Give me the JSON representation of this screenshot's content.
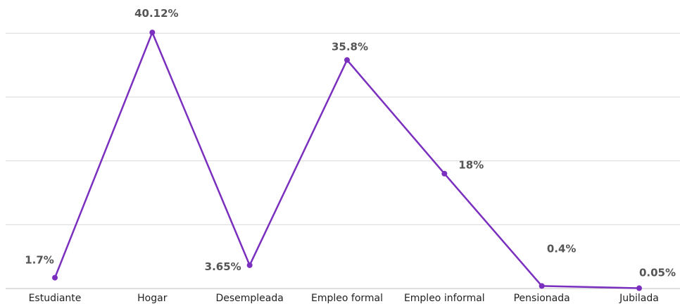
{
  "chart_data": {
    "type": "line",
    "categories": [
      "Estudiante",
      "Hogar",
      "Desempleada",
      "Empleo formal",
      "Empleo informal",
      "Pensionada",
      "Jubilada"
    ],
    "series": [
      {
        "values": [
          1.7,
          40.12,
          3.65,
          35.8,
          18,
          0.4,
          0.05
        ],
        "labels": [
          "1.7%",
          "40.12%",
          "3.65%",
          "35.8%",
          "18%",
          "0.4%",
          "0.05%"
        ]
      }
    ],
    "ylim": [
      0,
      40
    ],
    "grid": true,
    "legend": "none",
    "colors": {
      "series": "#7b2fbf",
      "grid": "#d9d9d9"
    }
  }
}
